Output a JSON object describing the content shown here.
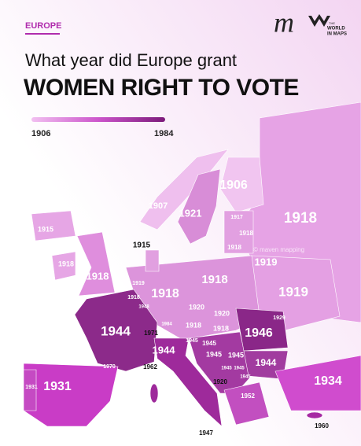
{
  "header": {
    "tag": "EUROPE",
    "logo_letter": "m",
    "logo_text": [
      "THE",
      "WORLD",
      "IN MAPS"
    ]
  },
  "title": {
    "line1": "What year did Europe grant",
    "line2": "WOMEN RIGHT TO VOTE"
  },
  "legend": {
    "min_label": "1906",
    "max_label": "1984"
  },
  "watermark": "© maven mapping",
  "map": {
    "labels": [
      "1906",
      "1907",
      "1921",
      "1918",
      "1917",
      "1918",
      "1918",
      "1919",
      "1915",
      "1915",
      "1918",
      "1918",
      "1919",
      "1918",
      "1948",
      "1918",
      "1918",
      "1919",
      "1920",
      "1920",
      "1918",
      "1918",
      "1984",
      "1971",
      "1944",
      "1945",
      "1945",
      "1946",
      "1929",
      "1944",
      "1945",
      "1945",
      "1944",
      "1945",
      "1945",
      "1945",
      "1970",
      "1962",
      "1920",
      "1952",
      "1934",
      "1931",
      "1931",
      "1960",
      "1947"
    ]
  }
}
